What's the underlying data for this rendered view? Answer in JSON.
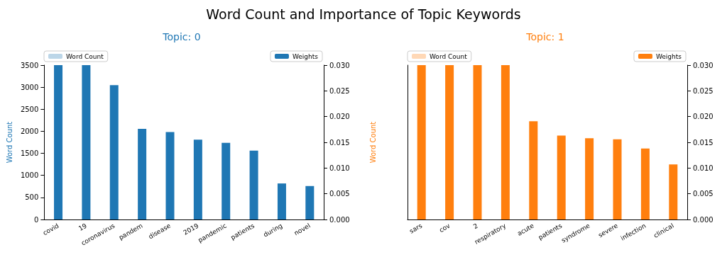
{
  "chart_data": [
    {
      "type": "bar",
      "title": "Topic: 0",
      "annotations": [
        "Word Count and Importance of Topic Keywords"
      ],
      "ylabel": "Word Count",
      "categories": [
        "covid",
        "19",
        "coronavirus",
        "pandem",
        "disease",
        "2019",
        "pandemic",
        "patients",
        "during",
        "novel"
      ],
      "series": [
        {
          "name": "Word Count",
          "color": "#bcd6e8",
          "axis": "y",
          "values": [
            null,
            null,
            null,
            null,
            null,
            null,
            null,
            null,
            null,
            null
          ]
        },
        {
          "name": "Weights",
          "color": "#1f77b4",
          "axis": "y2",
          "values": [
            0.03,
            0.03,
            0.0261,
            0.0176,
            0.017,
            0.0155,
            0.0149,
            0.0134,
            0.007,
            0.0065
          ]
        }
      ],
      "ylim": [
        0,
        3500
      ],
      "yticks": [
        0,
        500,
        1000,
        1500,
        2000,
        2500,
        3000,
        3500
      ],
      "y2lim": [
        0,
        0.03
      ],
      "y2ticks": [
        {
          "value": 0,
          "label": "0.000"
        },
        {
          "value": 0.005,
          "label": "0.005"
        },
        {
          "value": 0.01,
          "label": "0.010"
        },
        {
          "value": 0.015,
          "label": "0.015"
        },
        {
          "value": 0.02,
          "label": "0.020"
        },
        {
          "value": 0.025,
          "label": "0.025"
        },
        {
          "value": 0.03,
          "label": "0.030"
        }
      ],
      "grid": false,
      "legend": "top"
    },
    {
      "type": "bar",
      "title": "Topic: 1",
      "ylabel": "Word Count",
      "categories": [
        "sars",
        "cov",
        "2",
        "respiratory",
        "acute",
        "patients",
        "syndrome",
        "severe",
        "infection",
        "clinical"
      ],
      "series": [
        {
          "name": "Word Count",
          "color": "#ffd8b6",
          "axis": "y",
          "values": [
            null,
            null,
            null,
            null,
            null,
            null,
            null,
            null,
            null,
            null
          ]
        },
        {
          "name": "Weights",
          "color": "#ff7f0e",
          "axis": "y2",
          "values": [
            0.03,
            0.03,
            0.03,
            0.03,
            0.0191,
            0.0163,
            0.0158,
            0.0156,
            0.0138,
            0.0107
          ]
        }
      ],
      "y2lim": [
        0,
        0.03
      ],
      "y2ticks": [
        {
          "value": 0,
          "label": "0.000"
        },
        {
          "value": 0.005,
          "label": "0.005"
        },
        {
          "value": 0.01,
          "label": "0.010"
        },
        {
          "value": 0.015,
          "label": "0.015"
        },
        {
          "value": 0.02,
          "label": "0.020"
        },
        {
          "value": 0.025,
          "label": "0.025"
        },
        {
          "value": 0.03,
          "label": "0.030"
        }
      ],
      "grid": false,
      "legend": "top"
    }
  ]
}
